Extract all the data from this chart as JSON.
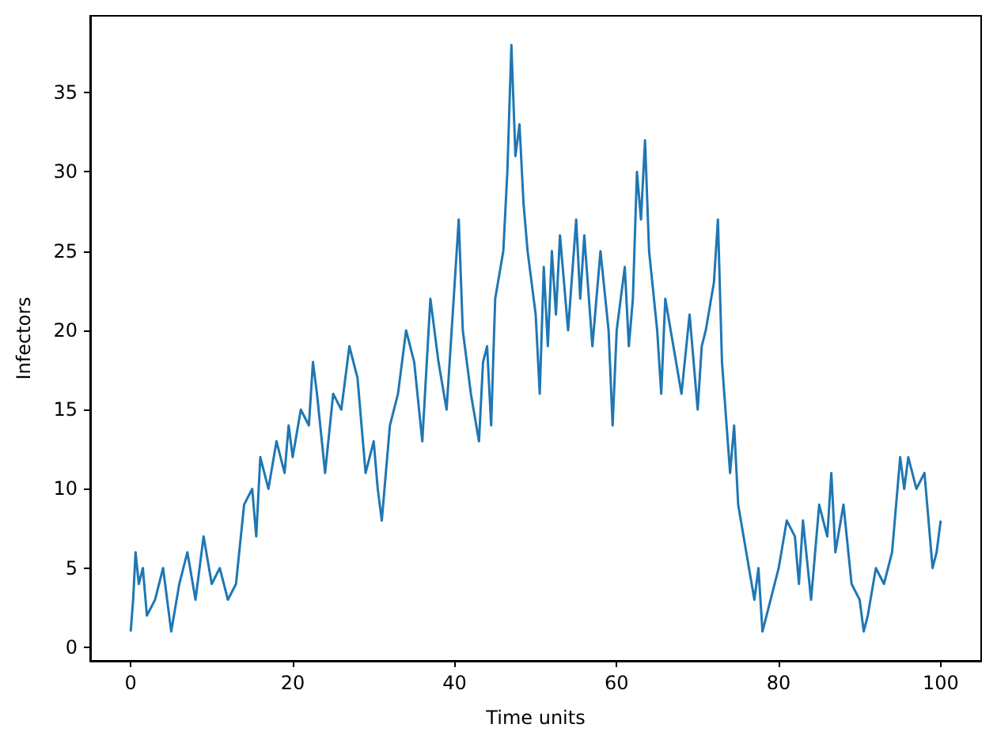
{
  "chart_data": {
    "type": "line",
    "xlabel": "Time units",
    "ylabel": "Infectors",
    "x": [
      0,
      0.3,
      0.6,
      1,
      1.5,
      2,
      3,
      4,
      5,
      6,
      7,
      8,
      9,
      10,
      11,
      12,
      13,
      14,
      15,
      15.5,
      16,
      17,
      18,
      19,
      19.5,
      20,
      21,
      22,
      22.5,
      23,
      24,
      25,
      26,
      27,
      28,
      28.5,
      29,
      30,
      30.5,
      31,
      32,
      33,
      34,
      35,
      36,
      37,
      38,
      39,
      40,
      40.5,
      41,
      42,
      43,
      43.5,
      44,
      44.5,
      45,
      46,
      46.5,
      47,
      47.5,
      48,
      48.5,
      49,
      50,
      50.5,
      51,
      51.5,
      52,
      52.5,
      53,
      54,
      55,
      55.5,
      56,
      57,
      58,
      59,
      59.5,
      60,
      61,
      61.5,
      62,
      62.5,
      63,
      63.5,
      64,
      65,
      65.5,
      66,
      67,
      68,
      69,
      70,
      70.5,
      71,
      72,
      72.5,
      73,
      74,
      74.5,
      75,
      76,
      77,
      77.5,
      78,
      79,
      80,
      81,
      82,
      82.5,
      83,
      84,
      85,
      86,
      86.5,
      87,
      88,
      89,
      90,
      90.5,
      91,
      92,
      93,
      94,
      95,
      95.5,
      96,
      97,
      98,
      99,
      99.5,
      100
    ],
    "series": [
      {
        "color": "#1f77b4",
        "values": [
          1,
          3,
          6,
          4,
          5,
          2,
          3,
          5,
          1,
          4,
          6,
          3,
          7,
          4,
          5,
          3,
          4,
          9,
          10,
          7,
          12,
          10,
          13,
          11,
          14,
          12,
          15,
          14,
          18,
          16,
          11,
          16,
          15,
          19,
          17,
          14,
          11,
          13,
          10,
          8,
          14,
          16,
          20,
          18,
          13,
          22,
          18,
          15,
          23,
          27,
          20,
          16,
          13,
          18,
          19,
          14,
          22,
          25,
          30,
          38,
          31,
          33,
          28,
          25,
          21,
          16,
          24,
          19,
          25,
          21,
          26,
          20,
          27,
          22,
          26,
          19,
          25,
          20,
          14,
          20,
          24,
          19,
          22,
          30,
          27,
          32,
          25,
          20,
          16,
          22,
          19,
          16,
          21,
          15,
          19,
          20,
          23,
          27,
          18,
          11,
          14,
          9,
          6,
          3,
          5,
          1,
          3,
          5,
          8,
          7,
          4,
          8,
          3,
          9,
          7,
          11,
          6,
          9,
          4,
          3,
          1,
          2,
          5,
          4,
          6,
          12,
          10,
          12,
          10,
          11,
          5,
          6,
          8
        ]
      }
    ],
    "xlim": [
      -5,
      105
    ],
    "xticks": [
      0,
      20,
      40,
      60,
      80,
      100
    ],
    "ylim": [
      -0.85,
      39.85
    ],
    "yticks": [
      0,
      5,
      10,
      15,
      20,
      25,
      30,
      35
    ],
    "marker": "none",
    "line_style": "solid"
  }
}
